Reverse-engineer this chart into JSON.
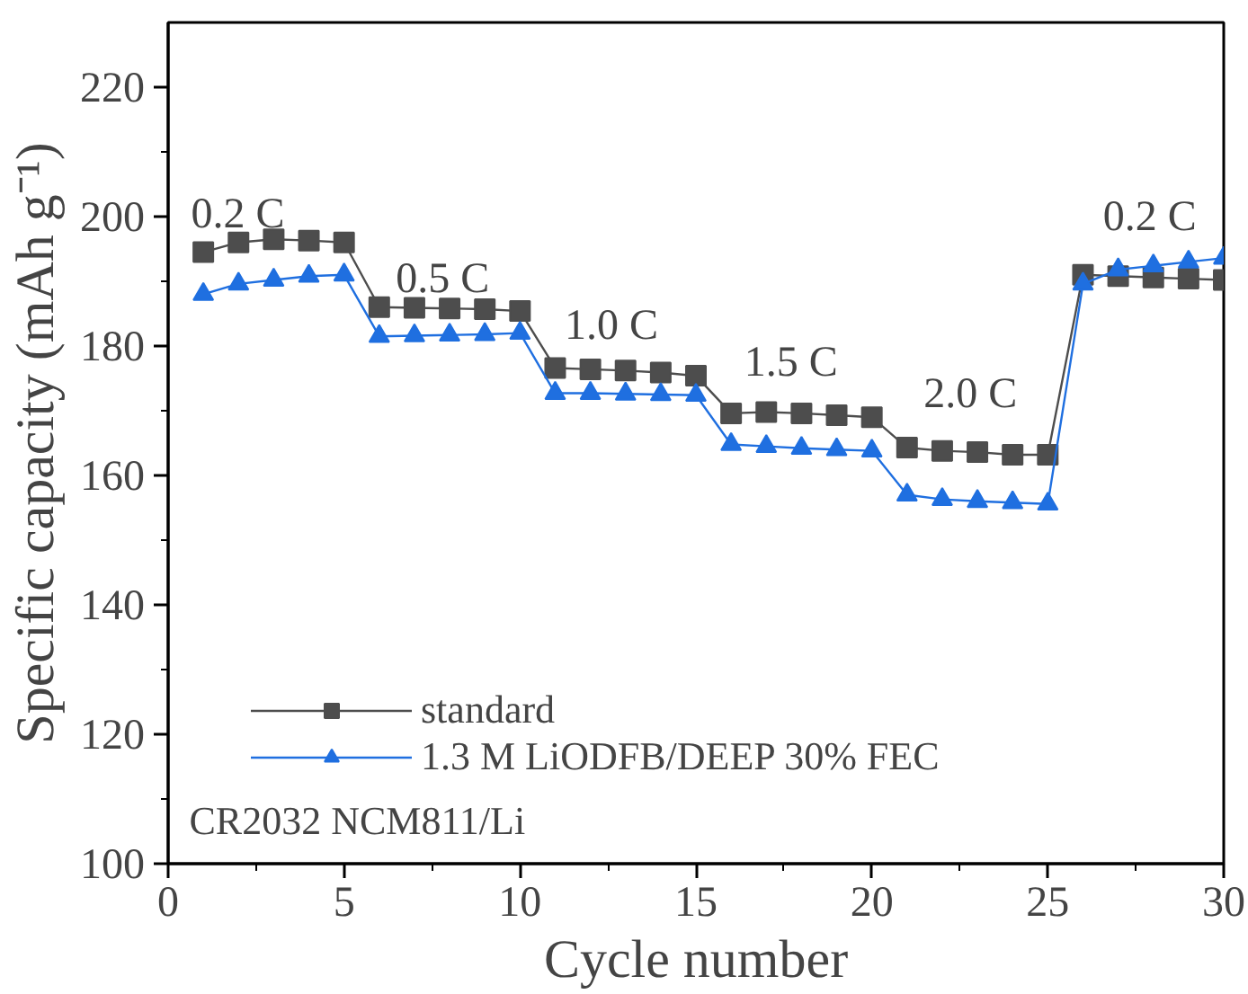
{
  "chart_data": {
    "type": "line",
    "xlabel": "Cycle number",
    "ylabel": "Specific capacity (mAh g⁻¹)",
    "x": [
      1,
      2,
      3,
      4,
      5,
      6,
      7,
      8,
      9,
      10,
      11,
      12,
      13,
      14,
      15,
      16,
      17,
      18,
      19,
      20,
      21,
      22,
      23,
      24,
      25,
      26,
      27,
      28,
      29,
      30
    ],
    "xlim": [
      0,
      30
    ],
    "xticks": [
      0,
      5,
      10,
      15,
      20,
      25,
      30
    ],
    "ylim": [
      100,
      230
    ],
    "yticks": [
      100,
      120,
      140,
      160,
      180,
      200,
      220
    ],
    "series": [
      {
        "name": "standard",
        "color": "#4d4d4d",
        "marker": "square",
        "values": [
          194.5,
          196,
          196.5,
          196.3,
          196,
          186,
          185.9,
          185.8,
          185.7,
          185.4,
          176.6,
          176.4,
          176.2,
          175.9,
          175.4,
          169.6,
          169.8,
          169.6,
          169.3,
          169,
          164.3,
          163.8,
          163.6,
          163.2,
          163.2,
          191,
          190.8,
          190.6,
          190.4,
          190.2
        ]
      },
      {
        "name": "1.3 M LiODFB/DEEP 30% FEC",
        "color": "#1f6fe0",
        "marker": "triangle",
        "values": [
          188,
          189.6,
          190.2,
          190.8,
          191,
          181.5,
          181.6,
          181.7,
          181.8,
          182,
          172.7,
          172.7,
          172.6,
          172.5,
          172.4,
          164.8,
          164.5,
          164.2,
          164,
          163.8,
          157,
          156.3,
          156,
          155.8,
          155.6,
          189.6,
          191.8,
          192.4,
          193,
          193.6
        ]
      }
    ],
    "annotations": [
      "0.2 C",
      "0.5 C",
      "1.0 C",
      "1.5 C",
      "2.0 C",
      "0.2 C",
      "CR2032 NCM811/Li"
    ],
    "legend": "bottom left",
    "grid": false,
    "line_style": "solid"
  }
}
